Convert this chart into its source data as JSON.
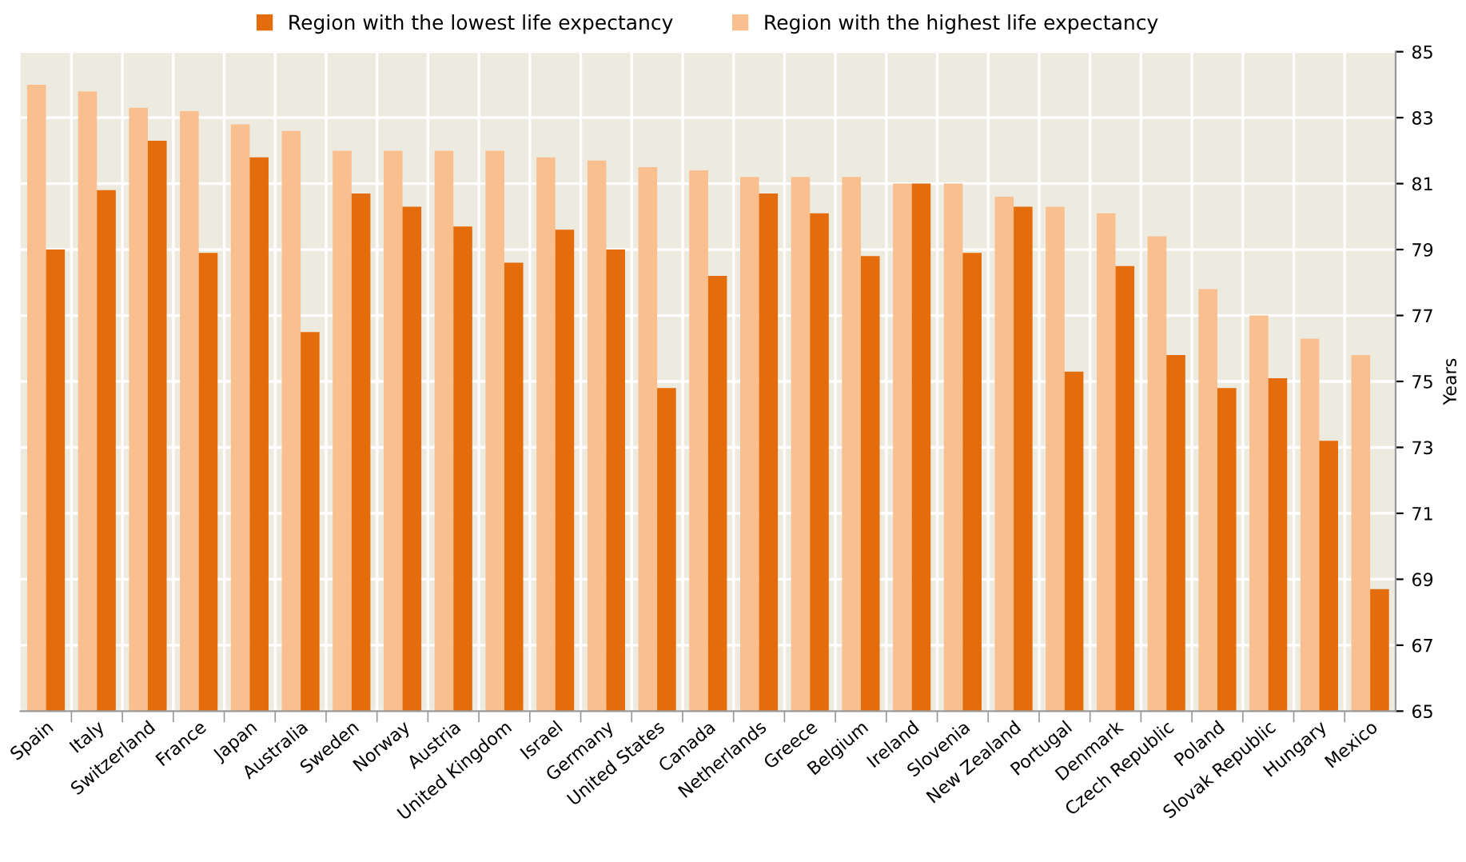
{
  "chart_data": {
    "type": "bar",
    "ylabel": "Years",
    "categories": [
      "Spain",
      "Italy",
      "Switzerland",
      "France",
      "Japan",
      "Australia",
      "Sweden",
      "Norway",
      "Austria",
      "United Kingdom",
      "Israel",
      "Germany",
      "United States",
      "Canada",
      "Netherlands",
      "Greece",
      "Belgium",
      "Ireland",
      "Slovenia",
      "New Zealand",
      "Portugal",
      "Denmark",
      "Czech Republic",
      "Poland",
      "Slovak Republic",
      "Hungary",
      "Mexico"
    ],
    "series": [
      {
        "name": "Region with the highest life expectancy",
        "color": "#f9bf8f",
        "values": [
          84.0,
          83.8,
          83.3,
          83.2,
          82.8,
          82.6,
          82.0,
          82.0,
          82.0,
          82.0,
          81.8,
          81.7,
          81.5,
          81.4,
          81.2,
          81.2,
          81.2,
          81.0,
          81.0,
          80.6,
          80.3,
          80.1,
          79.4,
          77.8,
          77.0,
          76.3,
          75.8
        ]
      },
      {
        "name": "Region with the lowest life expectancy",
        "color": "#e46c0a",
        "values": [
          79.0,
          80.8,
          82.3,
          78.9,
          81.8,
          76.5,
          80.7,
          80.3,
          79.7,
          78.6,
          79.6,
          79.0,
          74.8,
          78.2,
          80.7,
          80.1,
          78.8,
          81.0,
          78.9,
          80.3,
          75.3,
          78.5,
          75.8,
          74.8,
          75.1,
          73.2,
          68.7
        ]
      }
    ],
    "ylim": [
      65,
      85
    ],
    "yticks": [
      65,
      67,
      69,
      71,
      73,
      75,
      77,
      79,
      81,
      83,
      85
    ],
    "grid": true,
    "legend": "top"
  }
}
